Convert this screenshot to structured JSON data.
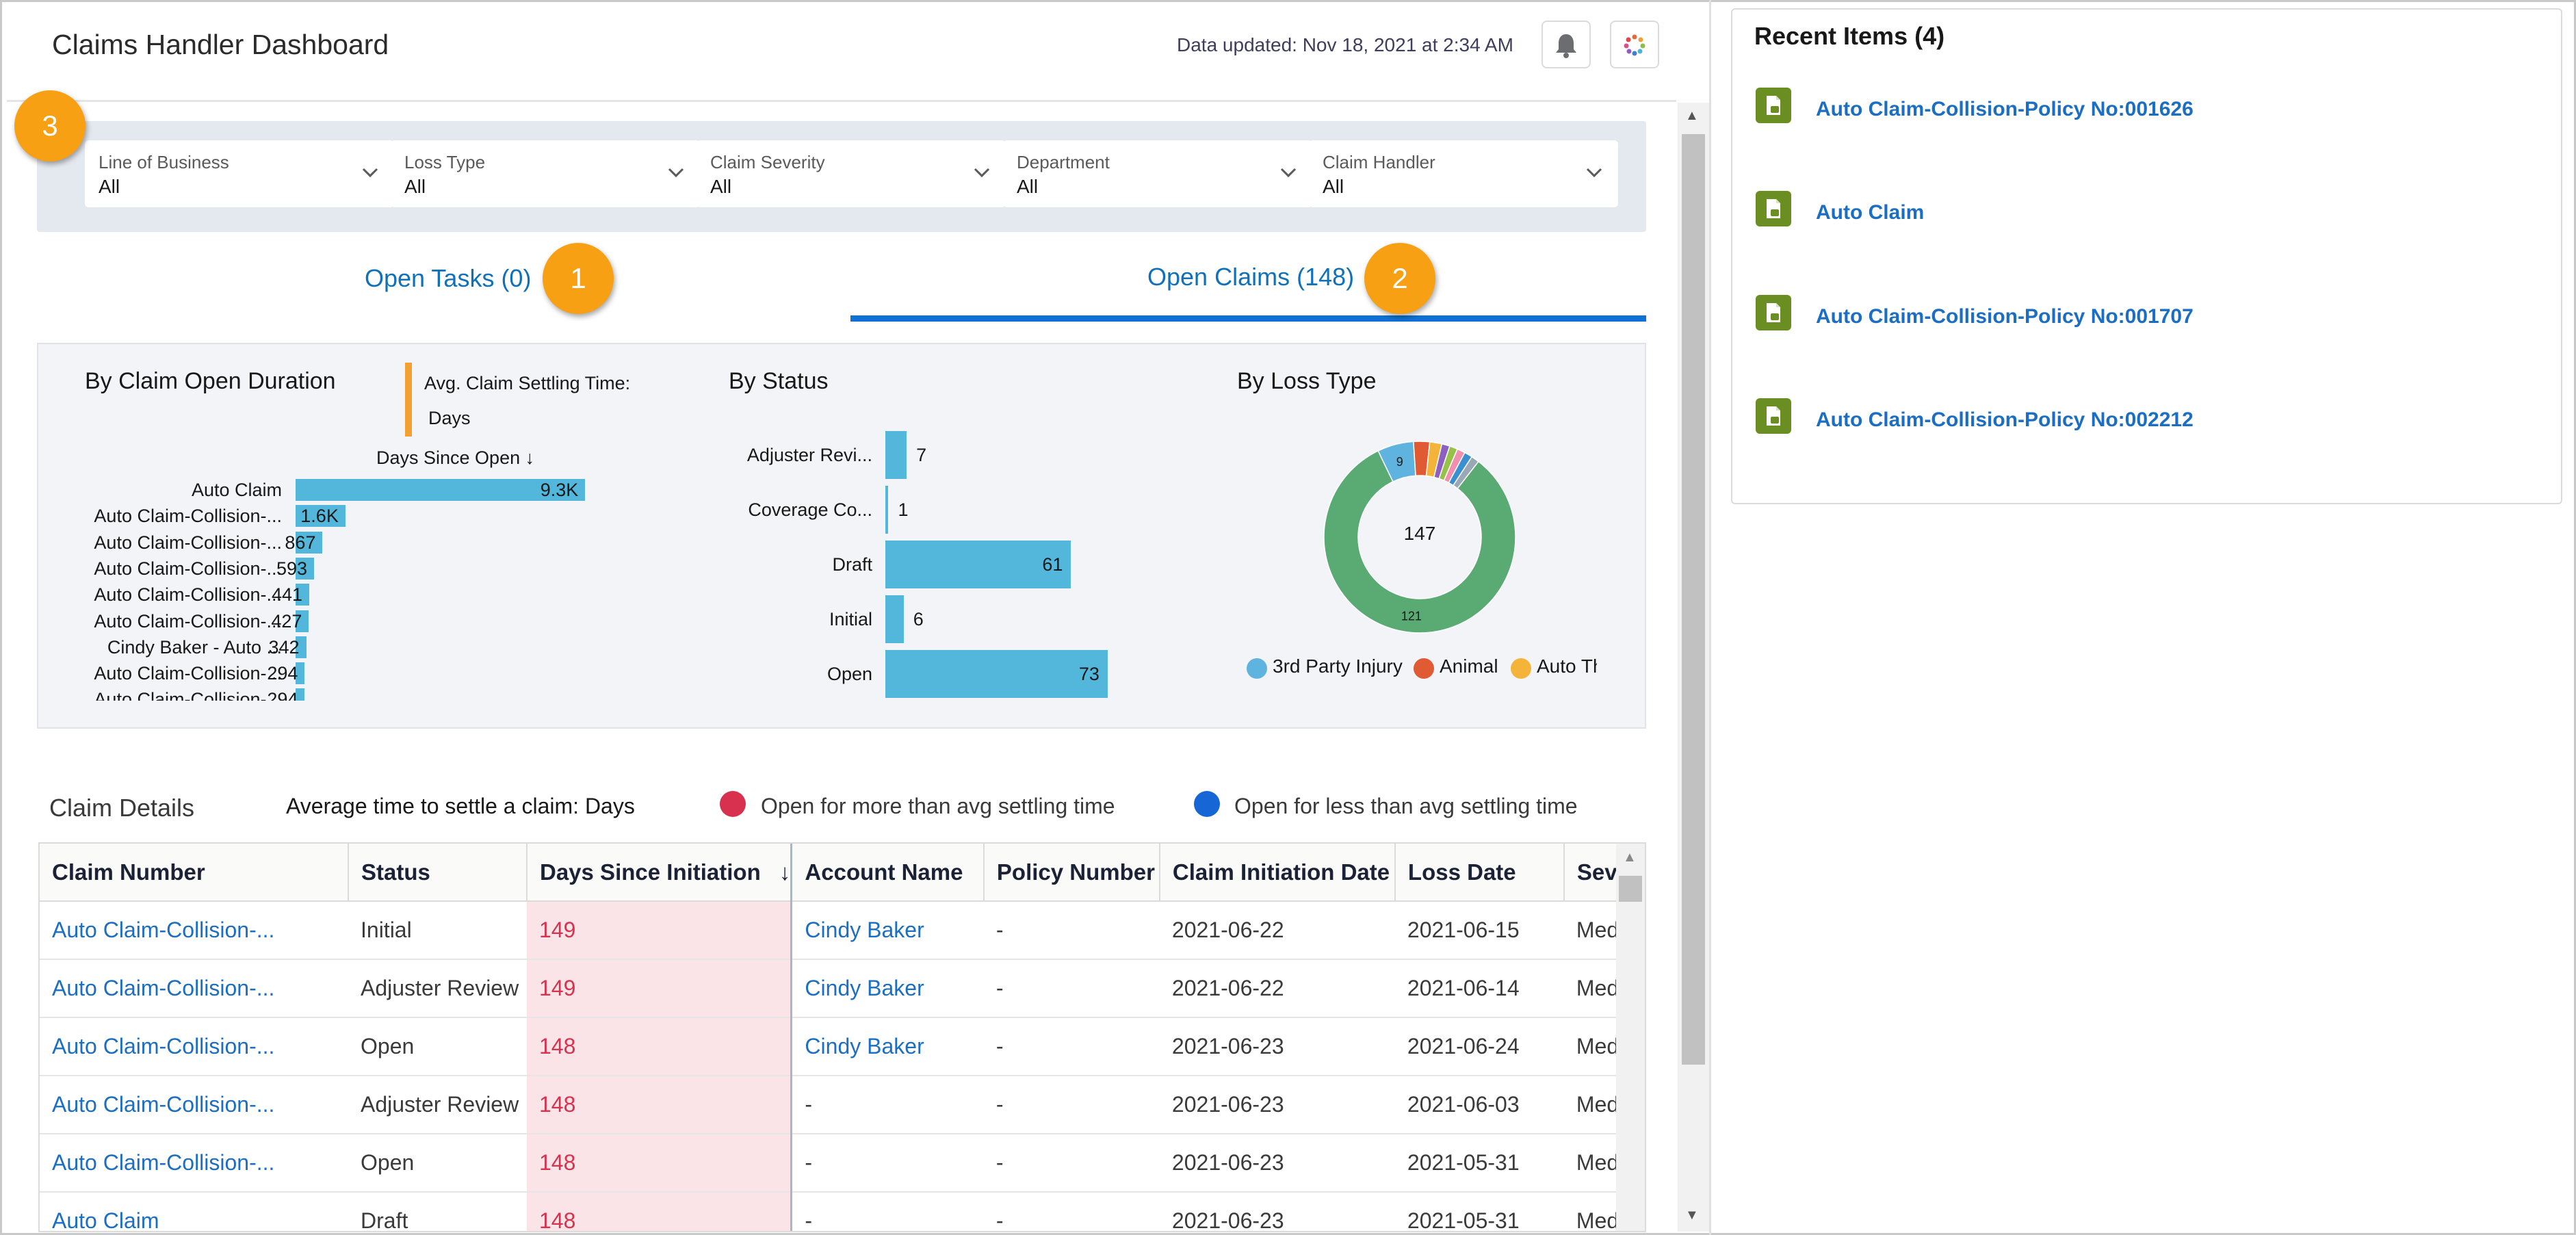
{
  "header": {
    "title": "Claims Handler Dashboard",
    "updated": "Data updated: Nov 18, 2021 at 2:34 AM",
    "bell_icon": "bell-icon",
    "apps_icon": "app-launcher-icon"
  },
  "filters": [
    {
      "label": "Line of Business",
      "value": "All"
    },
    {
      "label": "Loss Type",
      "value": "All"
    },
    {
      "label": "Claim Severity",
      "value": "All"
    },
    {
      "label": "Department",
      "value": "All"
    },
    {
      "label": "Claim Handler",
      "value": "All"
    }
  ],
  "badges": [
    "3",
    "1",
    "2"
  ],
  "tabs": [
    {
      "label": "Open Tasks (0)",
      "active": false
    },
    {
      "label": "Open Claims (148)",
      "active": true
    }
  ],
  "charts": {
    "duration": {
      "title": "By Claim Open Duration",
      "avg_label": "Avg. Claim Settling Time:",
      "avg_value": "Days",
      "sort_label": "Days Since Open ↓"
    },
    "status": {
      "title": "By Status"
    },
    "loss": {
      "title": "By Loss Type",
      "center": "147"
    }
  },
  "chart_data": [
    {
      "type": "bar",
      "orientation": "horizontal",
      "title": "By Claim Open Duration",
      "xlabel": "Days Since Open ↓",
      "categories": [
        "Auto Claim",
        "Auto Claim-Collision-...",
        "Auto Claim-Collision-...",
        "Auto Claim-Collision-...",
        "Auto Claim-Collision-...",
        "Auto Claim-Collision-...",
        "Cindy Baker - Auto ...",
        "Auto Claim-Collision-...",
        "Auto Claim-Collision-..."
      ],
      "values": [
        9300,
        1600,
        867,
        593,
        441,
        427,
        342,
        294,
        294
      ],
      "labels": [
        "9.3K",
        "1.6K",
        "867",
        "593",
        "441",
        "427",
        "342",
        "294",
        "294"
      ],
      "xlim": [
        0,
        9800
      ]
    },
    {
      "type": "bar",
      "orientation": "horizontal",
      "title": "By Status",
      "categories": [
        "Adjuster Revi...",
        "Coverage Co...",
        "Draft",
        "Initial",
        "Open"
      ],
      "values": [
        7,
        1,
        61,
        6,
        73
      ],
      "xlim": [
        0,
        80
      ]
    },
    {
      "type": "pie",
      "donut": true,
      "title": "By Loss Type",
      "total": 147,
      "slices": [
        {
          "name": "3rd Party Injury",
          "value": 9,
          "color": "#5eb4de"
        },
        {
          "name": "Animal",
          "value": 4,
          "color": "#e05a33"
        },
        {
          "name": "Auto Th",
          "value": 3,
          "color": "#f4b43a"
        },
        {
          "name": "",
          "value": 121,
          "color": "#5aaa73"
        },
        {
          "name": "",
          "value": 2,
          "color": "#8c5fc0"
        },
        {
          "name": "",
          "value": 2,
          "color": "#97c24a"
        },
        {
          "name": "",
          "value": 2,
          "color": "#f08fb0"
        },
        {
          "name": "",
          "value": 2,
          "color": "#3a8fd0"
        },
        {
          "name": "",
          "value": 2,
          "color": "#9aa7b5"
        }
      ],
      "slice_labels": [
        "9",
        "121"
      ],
      "legend": [
        "3rd Party Injury",
        "Animal",
        "Auto Th"
      ]
    }
  ],
  "claim_details": {
    "title": "Claim Details",
    "avg_text": "Average time to settle a claim:  Days",
    "key_more": "Open for more than avg settling time",
    "key_less": "Open for less than avg settling time",
    "key_more_color": "#d8304f",
    "key_less_color": "#1766d6"
  },
  "table": {
    "columns": [
      "Claim Number",
      "Status",
      "Days Since Initiation",
      "Account Name",
      "Policy Number",
      "Claim Initiation Date",
      "Loss Date",
      "Seve"
    ],
    "sort_icon": "↓",
    "rows": [
      [
        "Auto Claim-Collision-...",
        "Initial",
        "149",
        "Cindy Baker",
        "-",
        "2021-06-22",
        "2021-06-15",
        "Med"
      ],
      [
        "Auto Claim-Collision-...",
        "Adjuster Review",
        "149",
        "Cindy Baker",
        "-",
        "2021-06-22",
        "2021-06-14",
        "Med"
      ],
      [
        "Auto Claim-Collision-...",
        "Open",
        "148",
        "Cindy Baker",
        "-",
        "2021-06-23",
        "2021-06-24",
        "Med"
      ],
      [
        "Auto Claim-Collision-...",
        "Adjuster Review",
        "148",
        "-",
        "-",
        "2021-06-23",
        "2021-06-03",
        "Med"
      ],
      [
        "Auto Claim-Collision-...",
        "Open",
        "148",
        "-",
        "-",
        "2021-06-23",
        "2021-05-31",
        "Med"
      ],
      [
        "Auto Claim",
        "Draft",
        "148",
        "-",
        "-",
        "2021-06-23",
        "2021-05-31",
        "Med"
      ]
    ]
  },
  "recent": {
    "title": "Recent Items (4)",
    "items": [
      "Auto Claim-Collision-Policy No:001626",
      "Auto Claim",
      "Auto Claim-Collision-Policy No:001707",
      "Auto Claim-Collision-Policy No:002212"
    ]
  }
}
